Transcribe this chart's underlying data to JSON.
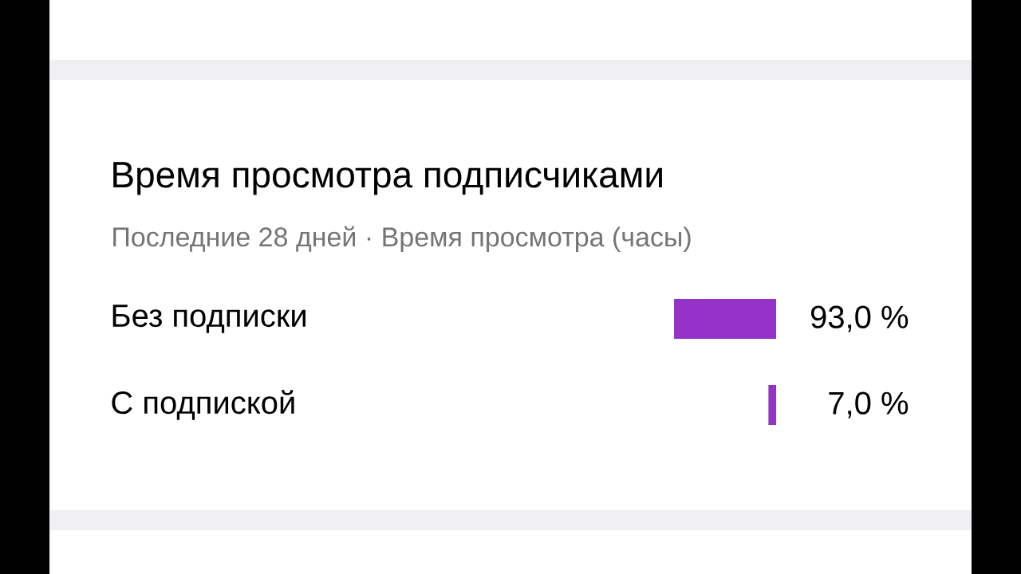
{
  "chart_data": {
    "type": "bar",
    "orientation": "horizontal",
    "title": "Время просмотра подписчиками",
    "subtitle": "Последние 28 дней · Время просмотра (часы)",
    "categories": [
      "Без подписки",
      "С подпиской"
    ],
    "values": [
      93.0,
      7.0
    ],
    "value_labels": [
      "93,0 %",
      "7,0 %"
    ],
    "color": "#9533c9"
  }
}
